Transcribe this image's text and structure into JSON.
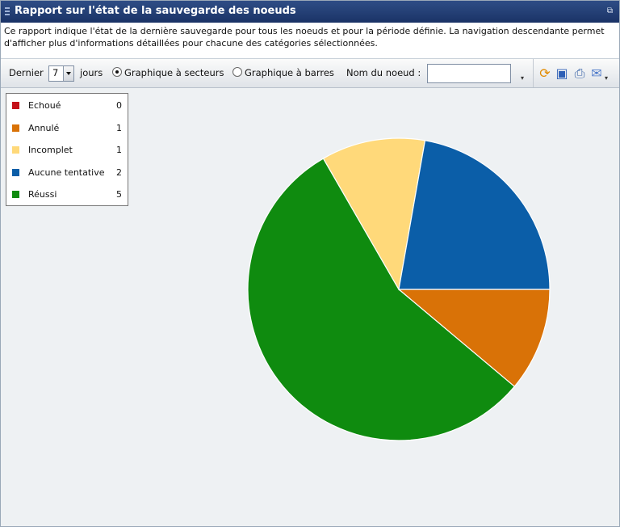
{
  "window": {
    "title": "Rapport sur l'état de la sauvegarde des noeuds"
  },
  "description": "Ce rapport indique l'état de la dernière sauvegarde pour tous les noeuds et pour la période définie. La navigation descendante permet d'afficher plus d'informations détaillées pour chacune des catégories sélectionnées.",
  "toolbar": {
    "last_label": "Dernier",
    "days_value": "7",
    "days_label": "jours",
    "pie_option": "Graphique à secteurs",
    "bar_option": "Graphique à barres",
    "selected_option": "pie",
    "node_label": "Nom du noeud :",
    "node_value": ""
  },
  "chart_data": {
    "type": "pie",
    "categories": [
      "Echoué",
      "Annulé",
      "Incomplet",
      "Aucune tentative",
      "Réussi"
    ],
    "values": [
      0,
      1,
      1,
      2,
      5
    ],
    "colors": [
      "#c4121a",
      "#d97207",
      "#ffd97a",
      "#0b5ea8",
      "#0f8b0f"
    ]
  }
}
